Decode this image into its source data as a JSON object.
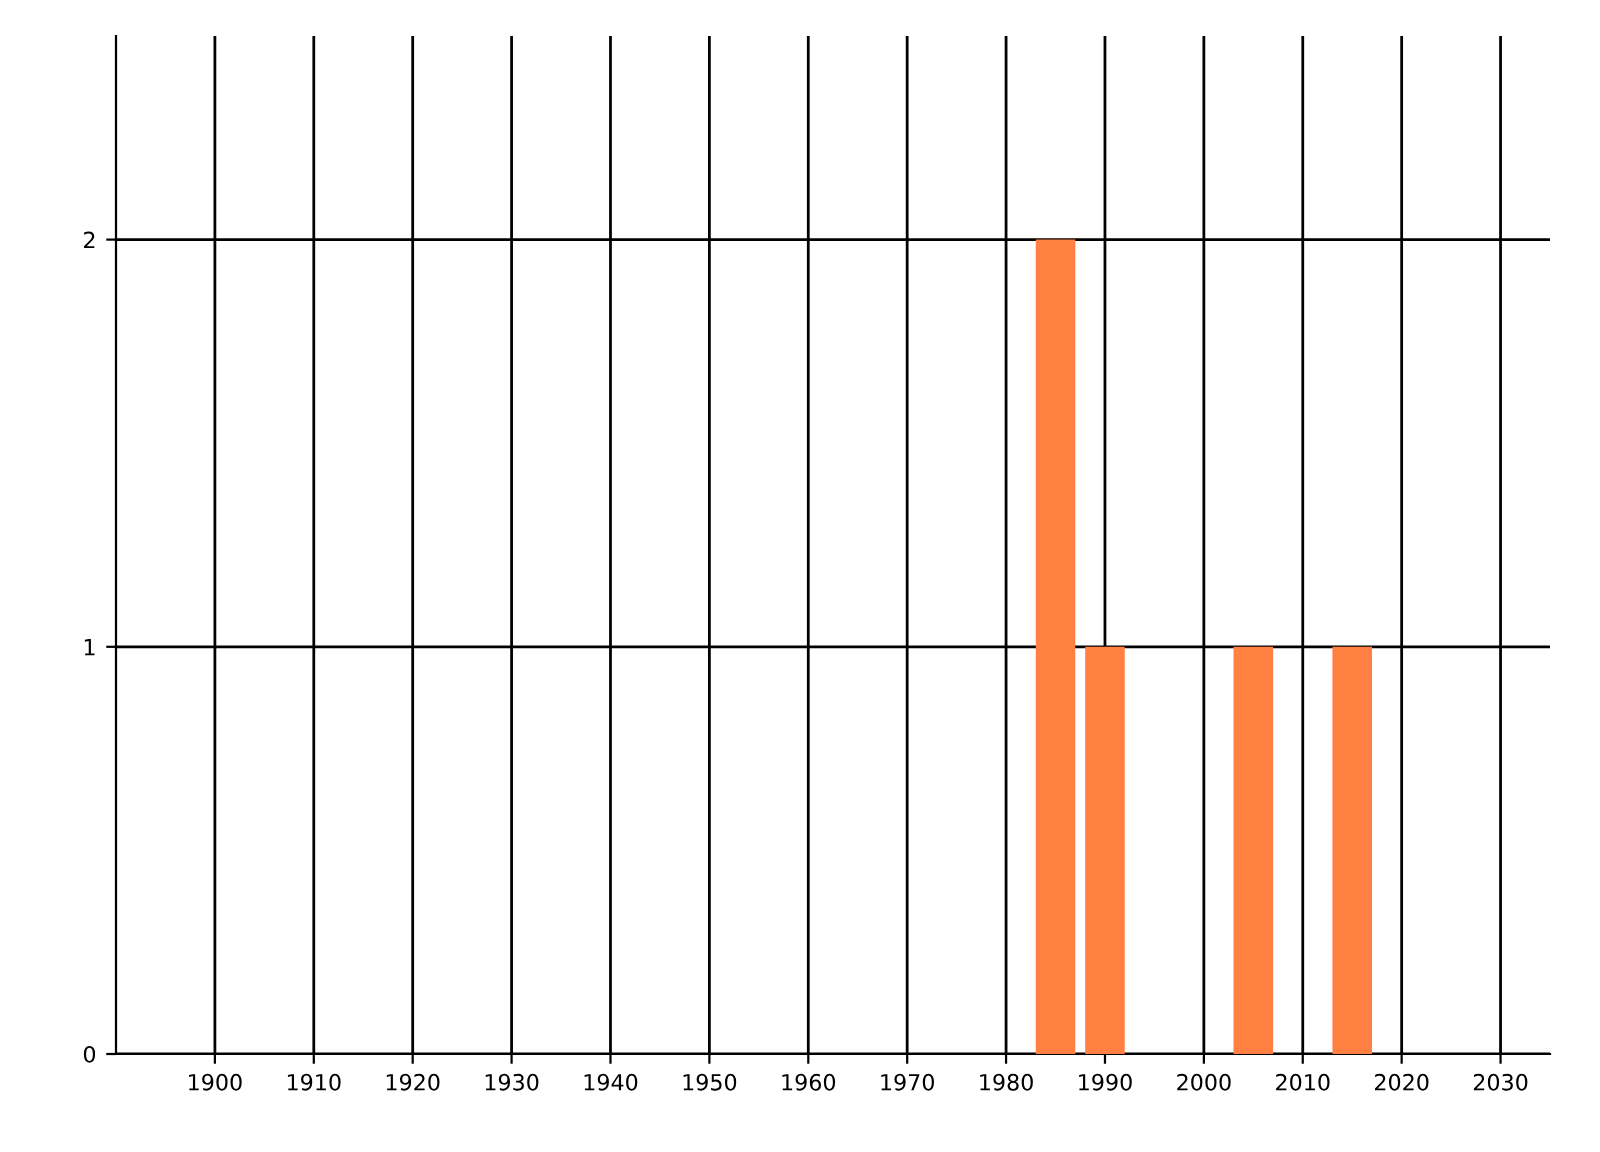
{
  "chart_data": {
    "type": "bar",
    "x": [
      1985,
      1990,
      2005,
      2015
    ],
    "values": [
      2,
      1,
      1,
      1
    ],
    "color": "#ff8040",
    "xlim": [
      1890,
      2035
    ],
    "xticks": [
      1900,
      1910,
      1920,
      1930,
      1940,
      1950,
      1960,
      1970,
      1980,
      1990,
      2000,
      2010,
      2020,
      2030
    ],
    "ylim": [
      0,
      2.5
    ],
    "yticks": [
      0,
      1,
      2
    ],
    "grid": true
  }
}
